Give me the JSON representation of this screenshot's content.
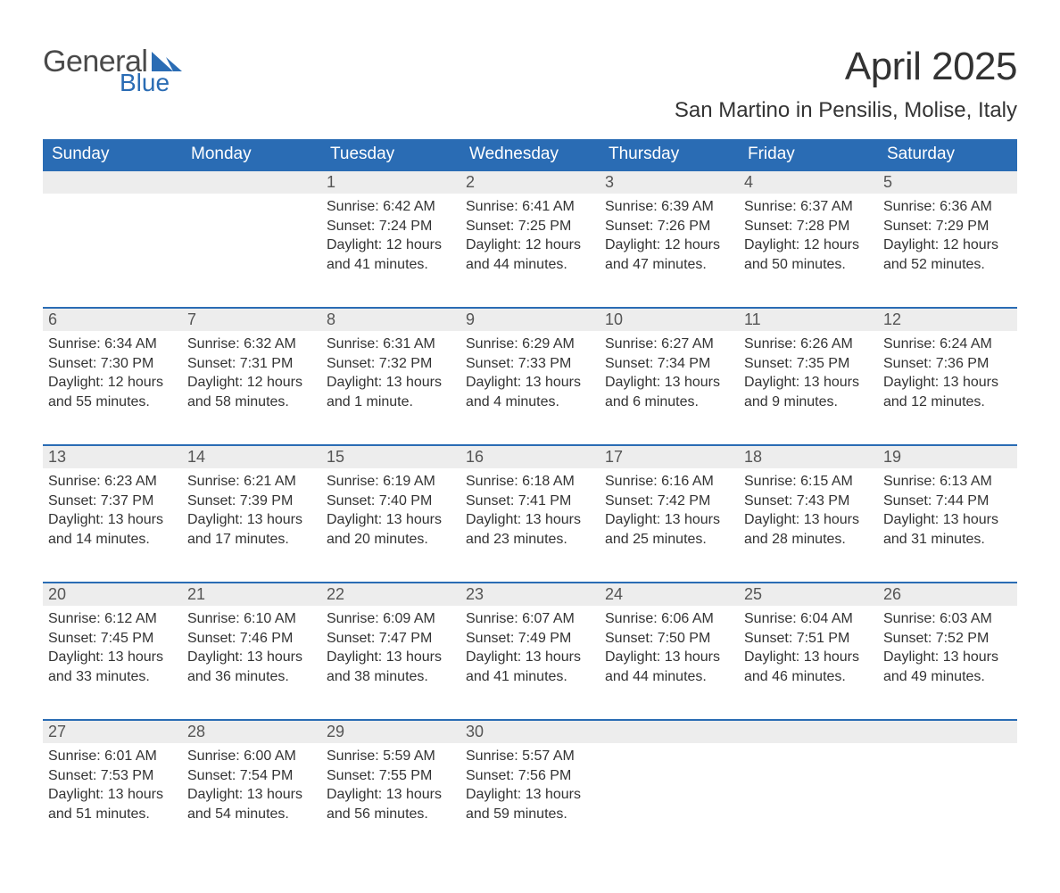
{
  "brand": {
    "part1": "General",
    "part2": "Blue",
    "text_color": "#4a4a4a",
    "accent_color": "#2a6cb4"
  },
  "title": "April 2025",
  "subtitle": "San Martino in Pensilis, Molise, Italy",
  "columns": [
    "Sunday",
    "Monday",
    "Tuesday",
    "Wednesday",
    "Thursday",
    "Friday",
    "Saturday"
  ],
  "colors": {
    "header_bg": "#2a6cb4",
    "header_text": "#ffffff",
    "daynum_bg": "#ededed",
    "daynum_border": "#2a6cb4",
    "body_text": "#333333",
    "page_bg": "#ffffff"
  },
  "weeks": [
    [
      null,
      null,
      {
        "n": "1",
        "sunrise": "Sunrise: 6:42 AM",
        "sunset": "Sunset: 7:24 PM",
        "dl1": "Daylight: 12 hours",
        "dl2": "and 41 minutes."
      },
      {
        "n": "2",
        "sunrise": "Sunrise: 6:41 AM",
        "sunset": "Sunset: 7:25 PM",
        "dl1": "Daylight: 12 hours",
        "dl2": "and 44 minutes."
      },
      {
        "n": "3",
        "sunrise": "Sunrise: 6:39 AM",
        "sunset": "Sunset: 7:26 PM",
        "dl1": "Daylight: 12 hours",
        "dl2": "and 47 minutes."
      },
      {
        "n": "4",
        "sunrise": "Sunrise: 6:37 AM",
        "sunset": "Sunset: 7:28 PM",
        "dl1": "Daylight: 12 hours",
        "dl2": "and 50 minutes."
      },
      {
        "n": "5",
        "sunrise": "Sunrise: 6:36 AM",
        "sunset": "Sunset: 7:29 PM",
        "dl1": "Daylight: 12 hours",
        "dl2": "and 52 minutes."
      }
    ],
    [
      {
        "n": "6",
        "sunrise": "Sunrise: 6:34 AM",
        "sunset": "Sunset: 7:30 PM",
        "dl1": "Daylight: 12 hours",
        "dl2": "and 55 minutes."
      },
      {
        "n": "7",
        "sunrise": "Sunrise: 6:32 AM",
        "sunset": "Sunset: 7:31 PM",
        "dl1": "Daylight: 12 hours",
        "dl2": "and 58 minutes."
      },
      {
        "n": "8",
        "sunrise": "Sunrise: 6:31 AM",
        "sunset": "Sunset: 7:32 PM",
        "dl1": "Daylight: 13 hours",
        "dl2": "and 1 minute."
      },
      {
        "n": "9",
        "sunrise": "Sunrise: 6:29 AM",
        "sunset": "Sunset: 7:33 PM",
        "dl1": "Daylight: 13 hours",
        "dl2": "and 4 minutes."
      },
      {
        "n": "10",
        "sunrise": "Sunrise: 6:27 AM",
        "sunset": "Sunset: 7:34 PM",
        "dl1": "Daylight: 13 hours",
        "dl2": "and 6 minutes."
      },
      {
        "n": "11",
        "sunrise": "Sunrise: 6:26 AM",
        "sunset": "Sunset: 7:35 PM",
        "dl1": "Daylight: 13 hours",
        "dl2": "and 9 minutes."
      },
      {
        "n": "12",
        "sunrise": "Sunrise: 6:24 AM",
        "sunset": "Sunset: 7:36 PM",
        "dl1": "Daylight: 13 hours",
        "dl2": "and 12 minutes."
      }
    ],
    [
      {
        "n": "13",
        "sunrise": "Sunrise: 6:23 AM",
        "sunset": "Sunset: 7:37 PM",
        "dl1": "Daylight: 13 hours",
        "dl2": "and 14 minutes."
      },
      {
        "n": "14",
        "sunrise": "Sunrise: 6:21 AM",
        "sunset": "Sunset: 7:39 PM",
        "dl1": "Daylight: 13 hours",
        "dl2": "and 17 minutes."
      },
      {
        "n": "15",
        "sunrise": "Sunrise: 6:19 AM",
        "sunset": "Sunset: 7:40 PM",
        "dl1": "Daylight: 13 hours",
        "dl2": "and 20 minutes."
      },
      {
        "n": "16",
        "sunrise": "Sunrise: 6:18 AM",
        "sunset": "Sunset: 7:41 PM",
        "dl1": "Daylight: 13 hours",
        "dl2": "and 23 minutes."
      },
      {
        "n": "17",
        "sunrise": "Sunrise: 6:16 AM",
        "sunset": "Sunset: 7:42 PM",
        "dl1": "Daylight: 13 hours",
        "dl2": "and 25 minutes."
      },
      {
        "n": "18",
        "sunrise": "Sunrise: 6:15 AM",
        "sunset": "Sunset: 7:43 PM",
        "dl1": "Daylight: 13 hours",
        "dl2": "and 28 minutes."
      },
      {
        "n": "19",
        "sunrise": "Sunrise: 6:13 AM",
        "sunset": "Sunset: 7:44 PM",
        "dl1": "Daylight: 13 hours",
        "dl2": "and 31 minutes."
      }
    ],
    [
      {
        "n": "20",
        "sunrise": "Sunrise: 6:12 AM",
        "sunset": "Sunset: 7:45 PM",
        "dl1": "Daylight: 13 hours",
        "dl2": "and 33 minutes."
      },
      {
        "n": "21",
        "sunrise": "Sunrise: 6:10 AM",
        "sunset": "Sunset: 7:46 PM",
        "dl1": "Daylight: 13 hours",
        "dl2": "and 36 minutes."
      },
      {
        "n": "22",
        "sunrise": "Sunrise: 6:09 AM",
        "sunset": "Sunset: 7:47 PM",
        "dl1": "Daylight: 13 hours",
        "dl2": "and 38 minutes."
      },
      {
        "n": "23",
        "sunrise": "Sunrise: 6:07 AM",
        "sunset": "Sunset: 7:49 PM",
        "dl1": "Daylight: 13 hours",
        "dl2": "and 41 minutes."
      },
      {
        "n": "24",
        "sunrise": "Sunrise: 6:06 AM",
        "sunset": "Sunset: 7:50 PM",
        "dl1": "Daylight: 13 hours",
        "dl2": "and 44 minutes."
      },
      {
        "n": "25",
        "sunrise": "Sunrise: 6:04 AM",
        "sunset": "Sunset: 7:51 PM",
        "dl1": "Daylight: 13 hours",
        "dl2": "and 46 minutes."
      },
      {
        "n": "26",
        "sunrise": "Sunrise: 6:03 AM",
        "sunset": "Sunset: 7:52 PM",
        "dl1": "Daylight: 13 hours",
        "dl2": "and 49 minutes."
      }
    ],
    [
      {
        "n": "27",
        "sunrise": "Sunrise: 6:01 AM",
        "sunset": "Sunset: 7:53 PM",
        "dl1": "Daylight: 13 hours",
        "dl2": "and 51 minutes."
      },
      {
        "n": "28",
        "sunrise": "Sunrise: 6:00 AM",
        "sunset": "Sunset: 7:54 PM",
        "dl1": "Daylight: 13 hours",
        "dl2": "and 54 minutes."
      },
      {
        "n": "29",
        "sunrise": "Sunrise: 5:59 AM",
        "sunset": "Sunset: 7:55 PM",
        "dl1": "Daylight: 13 hours",
        "dl2": "and 56 minutes."
      },
      {
        "n": "30",
        "sunrise": "Sunrise: 5:57 AM",
        "sunset": "Sunset: 7:56 PM",
        "dl1": "Daylight: 13 hours",
        "dl2": "and 59 minutes."
      },
      null,
      null,
      null
    ]
  ]
}
